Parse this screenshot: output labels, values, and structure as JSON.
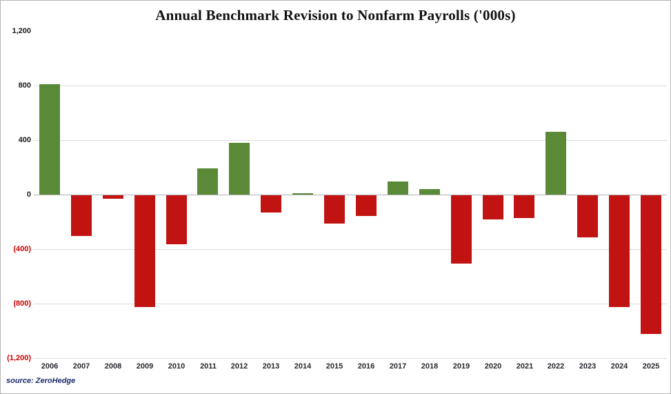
{
  "title": "Annual Benchmark Revision to Nonfarm Payrolls ('000s)",
  "source_text": "source: ZeroHedge",
  "colors": {
    "positive_bar": "#5a8a38",
    "negative_bar": "#c21313",
    "grid": "#dcdcdc",
    "zero_line": "#b0b0b0",
    "tick_label_positive": "#1a1a1a",
    "tick_label_negative": "#cc0000",
    "year_label": "#26262e",
    "title_text": "#111111",
    "source_color": "#1b2a6b"
  },
  "chart_data": {
    "type": "bar",
    "title": "Annual Benchmark Revision to Nonfarm Payrolls ('000s)",
    "categories": [
      "2006",
      "2007",
      "2008",
      "2009",
      "2010",
      "2011",
      "2012",
      "2013",
      "2014",
      "2015",
      "2016",
      "2017",
      "2018",
      "2019",
      "2020",
      "2021",
      "2022",
      "2023",
      "2024",
      "2025"
    ],
    "values": [
      810,
      -300,
      -25,
      -820,
      -360,
      190,
      380,
      -125,
      10,
      -210,
      -150,
      95,
      40,
      -500,
      -175,
      -165,
      460,
      -310,
      -818,
      -1020
    ],
    "xlabel": "",
    "ylabel": "",
    "ylim": [
      -1200,
      1200
    ],
    "grid": true,
    "legend": "none",
    "yticks": [
      {
        "value": 1200,
        "label": "1,200"
      },
      {
        "value": 800,
        "label": "800"
      },
      {
        "value": 400,
        "label": "400"
      },
      {
        "value": 0,
        "label": "0"
      },
      {
        "value": -400,
        "label": "(400)"
      },
      {
        "value": -800,
        "label": "(800)"
      },
      {
        "value": -1200,
        "label": "(1,200)"
      }
    ]
  }
}
